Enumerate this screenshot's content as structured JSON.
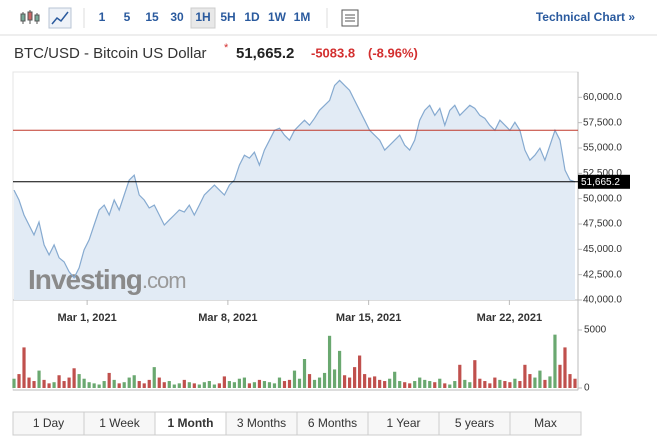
{
  "toolbar": {
    "intervals": [
      "1",
      "5",
      "15",
      "30",
      "1H",
      "5H",
      "1D",
      "1W",
      "1M"
    ],
    "active_index": 4,
    "link": "Technical Chart »"
  },
  "header": {
    "title": "BTC/USD - Bitcoin US Dollar",
    "price": "51,665.2",
    "change": "-5083.8",
    "change_pct": "(-8.96%)"
  },
  "chart_data": {
    "type": "area",
    "color": "#86aad0",
    "fill": "#e2ebf5",
    "series": [
      {
        "values": [
          50850,
          49870,
          48390,
          47400,
          46420,
          47700,
          45440,
          44450,
          45440,
          44160,
          43760,
          42780,
          42190,
          43170,
          44950,
          45930,
          47400,
          48880,
          49370,
          48390,
          49870,
          48880,
          50360,
          51830,
          52320,
          50360,
          49870,
          49080,
          49370,
          48390,
          47400,
          47900,
          48390,
          48880,
          48680,
          49370,
          48390,
          49370,
          50360,
          50850,
          51340,
          50850,
          50360,
          51340,
          51830,
          53310,
          54290,
          54000,
          54590,
          53310,
          54790,
          55770,
          56750,
          56950,
          56260,
          55770,
          56750,
          57250,
          57740,
          57250,
          57930,
          58720,
          59210,
          59700,
          61180,
          61670,
          61180,
          60690,
          59700,
          58720,
          57740,
          56750,
          56260,
          55770,
          54790,
          55280,
          55770,
          56260,
          55280,
          54790,
          55770,
          57740,
          58720,
          59210,
          58230,
          58920,
          57250,
          58720,
          59210,
          58230,
          58720,
          59210,
          58920,
          58230,
          57930,
          57250,
          56750,
          57740,
          57250,
          56750,
          57540,
          56750,
          54790,
          53800,
          54290,
          54980,
          53800,
          55280,
          56750,
          55770,
          52820,
          51830,
          51665.2
        ]
      }
    ],
    "xlim": [
      0,
      112
    ],
    "xticks": [
      {
        "value": 14.6,
        "label": "Mar 1, 2021"
      },
      {
        "value": 42.7,
        "label": "Mar 8, 2021"
      },
      {
        "value": 70.8,
        "label": "Mar 15, 2021"
      },
      {
        "value": 98.9,
        "label": "Mar 22, 2021"
      }
    ],
    "ylim": [
      40000,
      62500
    ],
    "yticks": [
      {
        "value": 40000,
        "label": "40,000.0"
      },
      {
        "value": 42500,
        "label": "42,500.0"
      },
      {
        "value": 45000,
        "label": "45,000.0"
      },
      {
        "value": 47500,
        "label": "47,500.0"
      },
      {
        "value": 50000,
        "label": "50,000.0"
      },
      {
        "value": 52500,
        "label": "52,500.0"
      },
      {
        "value": 55000,
        "label": "55,000.0"
      },
      {
        "value": 57500,
        "label": "57,500.0"
      },
      {
        "value": 60000,
        "label": "60,000.0"
      }
    ],
    "reference_lines": [
      {
        "value": 56749,
        "color": "#c0392b"
      },
      {
        "value": 51665.2,
        "color": "#000000",
        "label": "51,665.2"
      }
    ],
    "watermark": "Investing",
    "watermark_suffix": ".com",
    "volume": {
      "values": [
        800,
        1200,
        3500,
        900,
        600,
        1500,
        700,
        400,
        500,
        1100,
        600,
        900,
        1700,
        1200,
        800,
        500,
        400,
        300,
        600,
        1300,
        700,
        400,
        500,
        900,
        1100,
        600,
        400,
        700,
        1800,
        900,
        500,
        600,
        300,
        400,
        700,
        500,
        400,
        300,
        500,
        600,
        300,
        400,
        1000,
        600,
        500,
        800,
        900,
        400,
        500,
        700,
        600,
        500,
        400,
        900,
        600,
        700,
        1500,
        800,
        2500,
        1200,
        700,
        900,
        1300,
        4500,
        1600,
        3200,
        1100,
        900,
        1800,
        2800,
        1200,
        900,
        1000,
        700,
        600,
        800,
        1400,
        600,
        500,
        400,
        600,
        900,
        700,
        600,
        500,
        800,
        400,
        300,
        600,
        2000,
        700,
        500,
        2400,
        800,
        600,
        400,
        900,
        700,
        600,
        500,
        800,
        600,
        2000,
        1200,
        900,
        1500,
        700,
        1000,
        4600,
        2000,
        3500,
        1200,
        800
      ],
      "ylim": [
        0,
        5000
      ],
      "yticks": [
        0,
        5000
      ],
      "up_color": "#6aa870",
      "down_color": "#c0504d"
    }
  },
  "ranges": {
    "tabs": [
      "1 Day",
      "1 Week",
      "1 Month",
      "3 Months",
      "6 Months",
      "1 Year",
      "5 years",
      "Max"
    ],
    "active_index": 2
  }
}
